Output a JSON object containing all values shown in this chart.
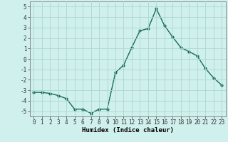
{
  "x": [
    0,
    1,
    2,
    3,
    4,
    5,
    6,
    7,
    8,
    9,
    10,
    11,
    12,
    13,
    14,
    15,
    16,
    17,
    18,
    19,
    20,
    21,
    22,
    23
  ],
  "y": [
    -3.2,
    -3.2,
    -3.3,
    -3.5,
    -3.8,
    -4.8,
    -4.8,
    -5.2,
    -4.8,
    -4.8,
    -1.3,
    -0.6,
    1.1,
    2.7,
    2.9,
    4.8,
    3.2,
    2.1,
    1.1,
    0.7,
    0.3,
    -0.9,
    -1.8,
    -2.5
  ],
  "line_color": "#1a6b5a",
  "marker": "o",
  "markersize": 2.0,
  "linewidth": 1.0,
  "xlabel": "Humidex (Indice chaleur)",
  "ylabel": "",
  "xlim": [
    -0.5,
    23.5
  ],
  "ylim": [
    -5.5,
    5.5
  ],
  "yticks": [
    -5,
    -4,
    -3,
    -2,
    -1,
    0,
    1,
    2,
    3,
    4,
    5
  ],
  "xticks": [
    0,
    1,
    2,
    3,
    4,
    5,
    6,
    7,
    8,
    9,
    10,
    11,
    12,
    13,
    14,
    15,
    16,
    17,
    18,
    19,
    20,
    21,
    22,
    23
  ],
  "bg_color": "#cff0ec",
  "grid_color": "#aad8d0",
  "tick_fontsize": 5.5,
  "label_fontsize": 6.5,
  "spine_color": "#888888"
}
